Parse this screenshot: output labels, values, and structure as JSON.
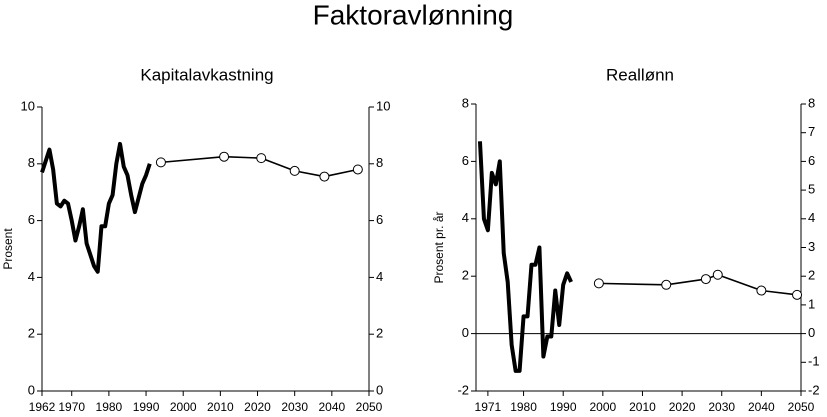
{
  "title": "Faktoravlønning",
  "chart_data": [
    {
      "type": "line",
      "title": "Kapitalavkastning",
      "ylabel": "Prosent",
      "xlim": [
        1962,
        2050
      ],
      "xticks": [
        1962,
        1970,
        1980,
        1990,
        2000,
        2010,
        2020,
        2030,
        2040,
        2050
      ],
      "ylim": [
        0,
        10
      ],
      "yticks": [
        0,
        2,
        4,
        6,
        8,
        10
      ],
      "y2lim": [
        0,
        10
      ],
      "y2ticks": [
        0,
        2,
        4,
        6,
        8,
        10
      ],
      "series": [
        {
          "color": "#000000",
          "x": [
            1962,
            1963,
            1964,
            1965,
            1966,
            1967,
            1968,
            1969,
            1970,
            1971,
            1972,
            1973,
            1974,
            1975,
            1976,
            1977,
            1978,
            1979,
            1980,
            1981,
            1982,
            1983,
            1984,
            1985,
            1986,
            1987,
            1988,
            1989,
            1990,
            1991
          ],
          "values": [
            7.7,
            8.1,
            8.5,
            7.8,
            6.6,
            6.5,
            6.7,
            6.6,
            6.0,
            5.3,
            5.8,
            6.4,
            5.2,
            4.8,
            4.4,
            4.2,
            5.8,
            5.8,
            6.6,
            6.9,
            8.0,
            8.7,
            7.9,
            7.6,
            6.9,
            6.3,
            6.8,
            7.3,
            7.6,
            8.0
          ]
        },
        {
          "color": "#000000",
          "markers": true,
          "x": [
            1994,
            2011,
            2021,
            2030,
            2038,
            2047
          ],
          "values": [
            8.05,
            8.25,
            8.2,
            7.75,
            7.55,
            7.8
          ]
        }
      ]
    },
    {
      "type": "line",
      "title": "Reallønn",
      "ylabel": "Prosent  pr. år",
      "xlim": [
        1968,
        2050
      ],
      "xticks": [
        1971,
        1980,
        1990,
        2000,
        2010,
        2020,
        2030,
        2040,
        2050
      ],
      "ylim": [
        -2,
        8
      ],
      "yticks": [
        -2,
        0,
        2,
        4,
        6,
        8
      ],
      "y2lim": [
        -2,
        8
      ],
      "y2ticks": [
        -2,
        -1,
        0,
        1,
        2,
        3,
        4,
        5,
        6,
        7,
        8
      ],
      "zero_line": true,
      "series": [
        {
          "color": "#000000",
          "x": [
            1969,
            1970,
            1971,
            1972,
            1973,
            1974,
            1975,
            1976,
            1977,
            1978,
            1979,
            1980,
            1981,
            1982,
            1983,
            1984,
            1985,
            1986,
            1987,
            1988,
            1989,
            1990,
            1991,
            1992
          ],
          "values": [
            6.7,
            4.0,
            3.6,
            5.6,
            5.2,
            6.0,
            2.8,
            1.8,
            -0.4,
            -1.3,
            -1.3,
            0.6,
            0.6,
            2.4,
            2.4,
            3.0,
            -0.8,
            -0.1,
            -0.1,
            1.5,
            0.3,
            1.7,
            2.1,
            1.8
          ]
        },
        {
          "color": "#000000",
          "markers": true,
          "x": [
            1999,
            2016,
            2026,
            2029,
            2040,
            2049
          ],
          "values": [
            1.75,
            1.7,
            1.9,
            2.05,
            1.5,
            1.35
          ]
        }
      ]
    }
  ]
}
